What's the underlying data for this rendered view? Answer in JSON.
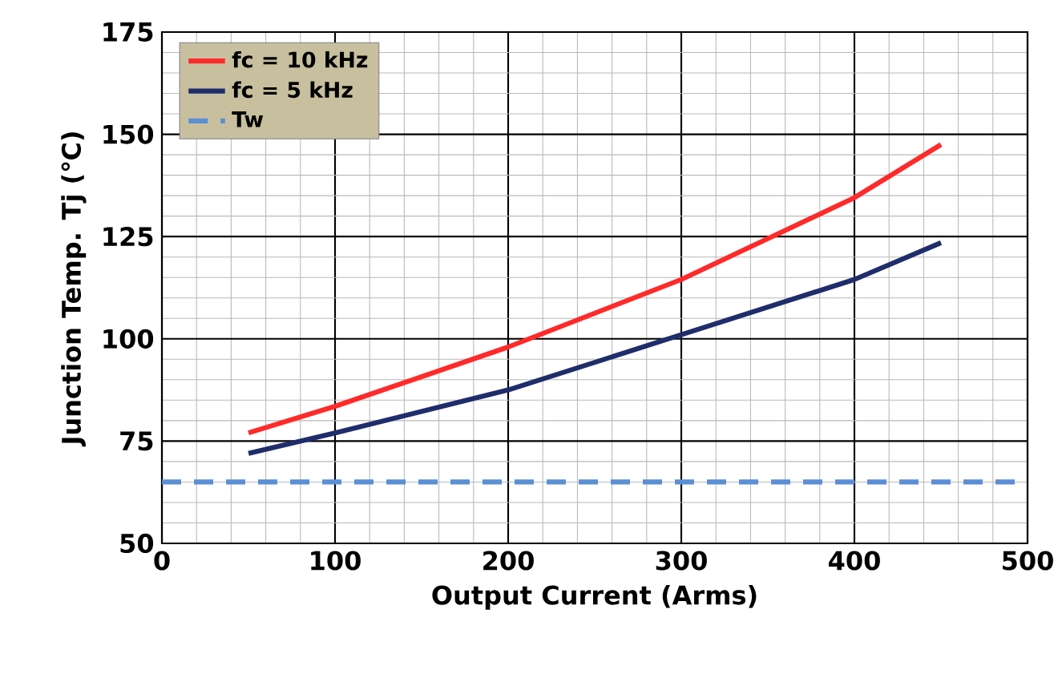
{
  "chart_data": {
    "type": "line",
    "xlabel": "Output Current (Arms)",
    "ylabel": "Junction Temp. Tj (℃)",
    "x": [
      50,
      100,
      200,
      300,
      400,
      450
    ],
    "series": [
      {
        "name": "fc = 10 kHz",
        "color": "#ff2a2a",
        "values": [
          77,
          83.5,
          98,
          114.5,
          134.5,
          147.5
        ]
      },
      {
        "name": "fc = 5 kHz",
        "color": "#1f2d6b",
        "values": [
          72,
          77,
          87.5,
          101,
          114.5,
          123.5
        ]
      }
    ],
    "ref_lines": [
      {
        "axis": "y",
        "value": 65,
        "label": "Tw",
        "color": "#5b8fd4",
        "line_style": "dashed"
      }
    ],
    "xlim": [
      0,
      500
    ],
    "ylim": [
      50,
      175
    ],
    "xticks": [
      0,
      100,
      200,
      300,
      400,
      500
    ],
    "yticks": [
      50,
      75,
      100,
      125,
      150,
      175
    ],
    "grid": true,
    "legend": "top left",
    "marker": "none",
    "line_style": "solid"
  }
}
